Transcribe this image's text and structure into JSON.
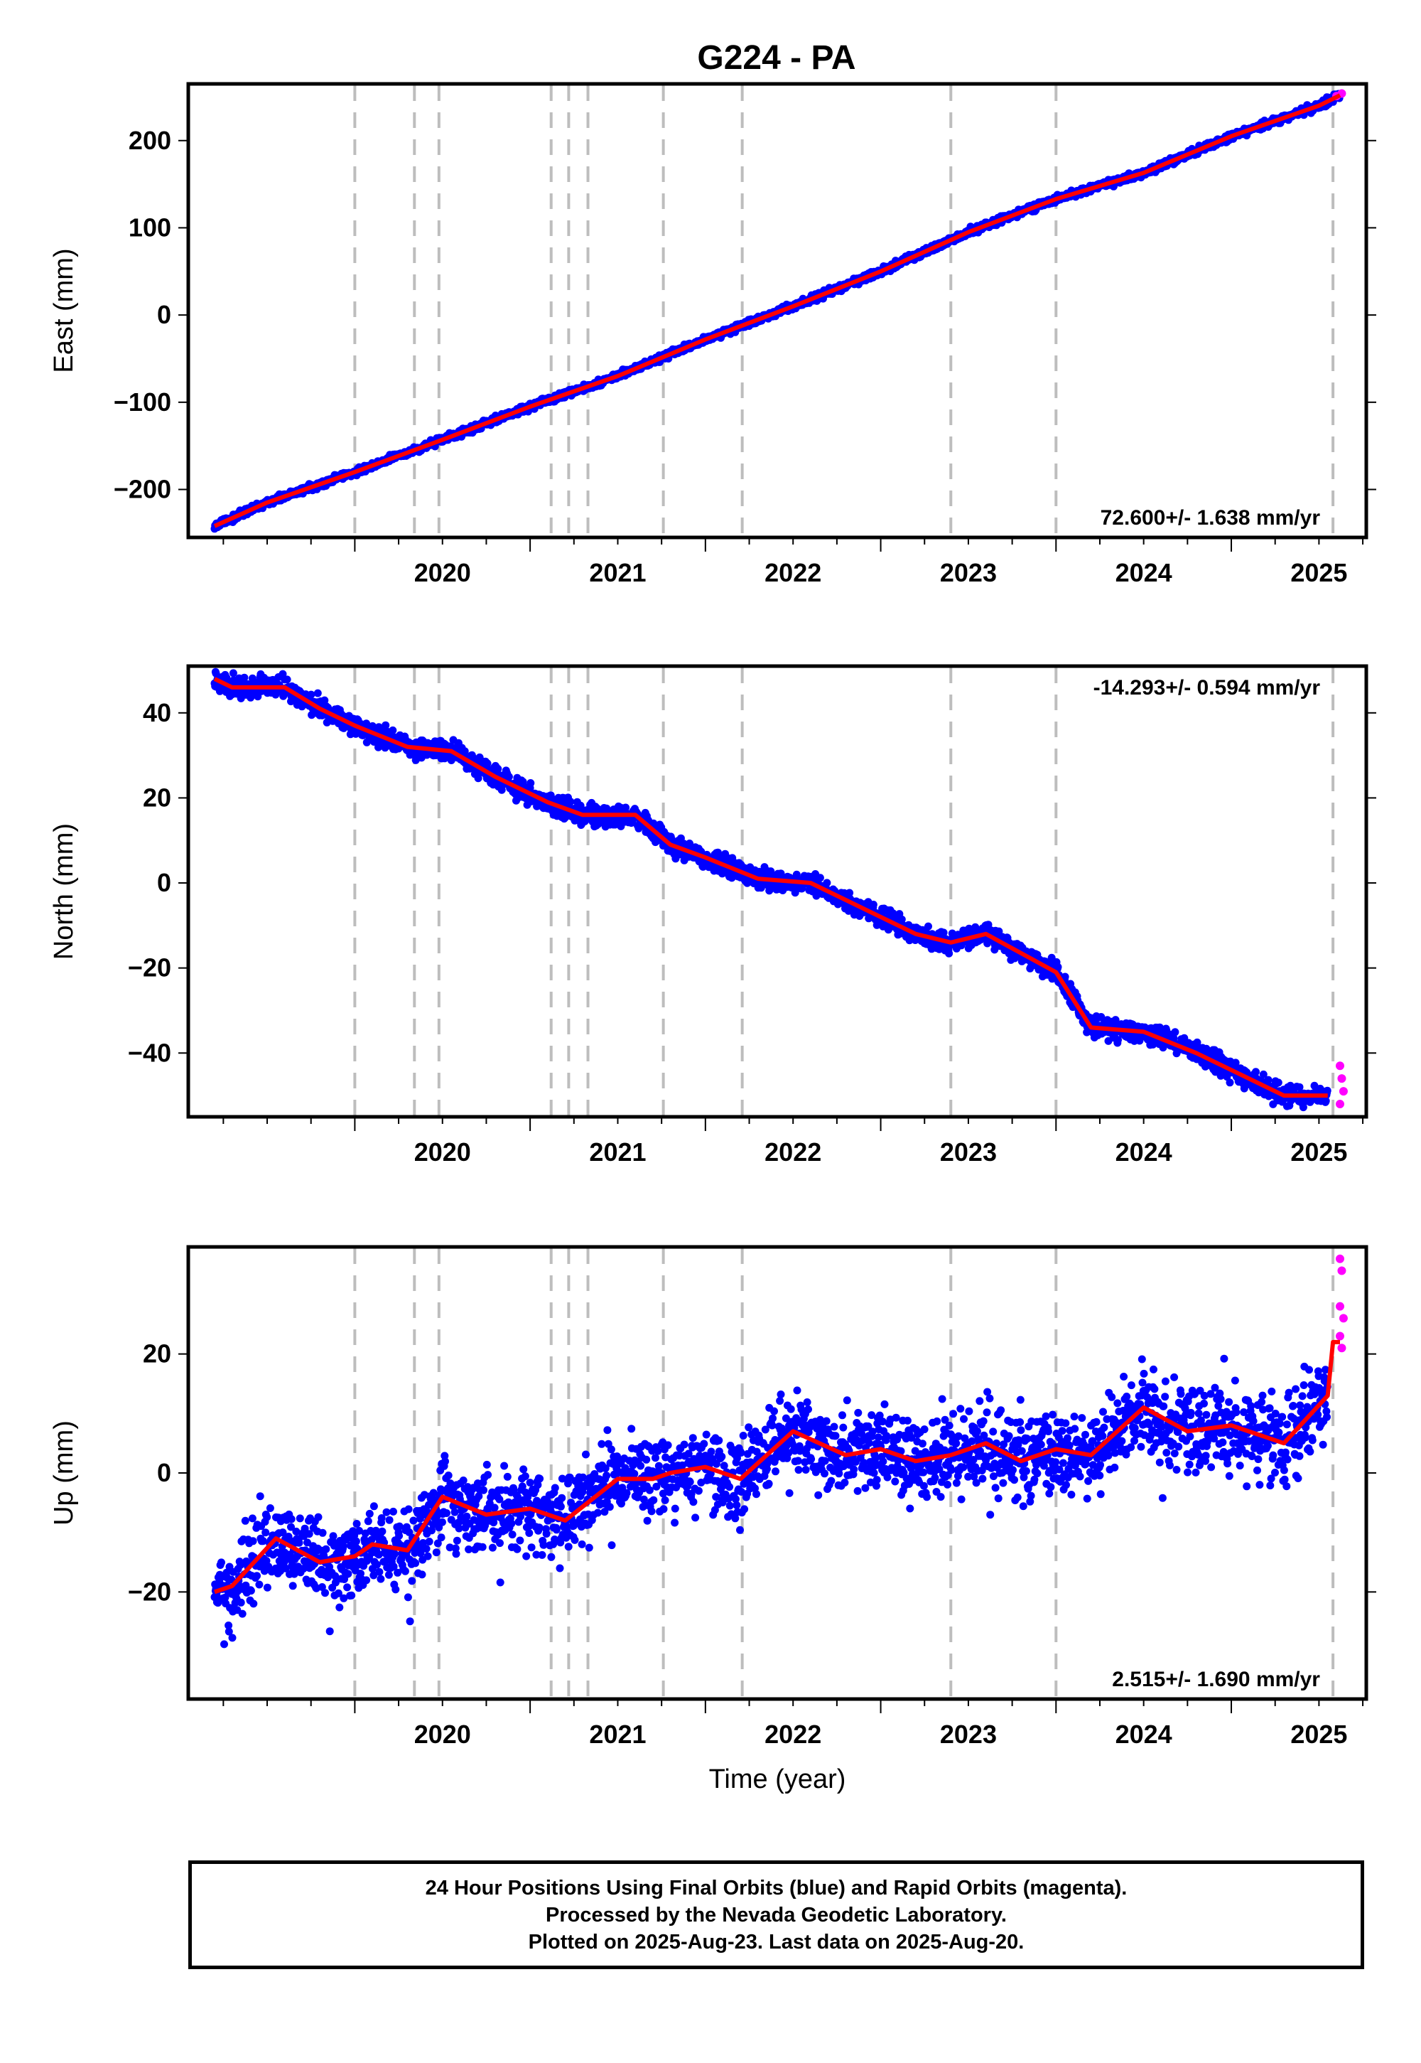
{
  "title": "G224 - PA",
  "chart_data": [
    {
      "type": "scatter",
      "panel": "east",
      "ylabel": "East (mm)",
      "xlabel": "",
      "xlim": [
        2019.05,
        2025.77
      ],
      "ylim": [
        -255,
        265
      ],
      "yticks": [
        -200,
        -100,
        0,
        100,
        200
      ],
      "xticks": [
        2020,
        2021,
        2022,
        2023,
        2024,
        2025
      ],
      "velocity_label": "72.600+/- 1.638 mm/yr",
      "velocity_label_position": "bottom-right",
      "series": [
        {
          "color": "#0000ff",
          "x": [
            2019.2,
            2019.5,
            2020.0,
            2020.5,
            2021.0,
            2021.5,
            2022.0,
            2022.5,
            2023.0,
            2023.5,
            2024.0,
            2024.5,
            2025.0,
            2025.5,
            2025.62
          ],
          "y": [
            -242,
            -215,
            -180,
            -143,
            -105,
            -70,
            -28,
            10,
            50,
            95,
            133,
            163,
            205,
            240,
            252
          ]
        },
        {
          "color": "#ff00ff",
          "x": [
            2025.6,
            2025.63
          ],
          "y": [
            251,
            254
          ]
        }
      ],
      "model_line": {
        "color": "#ff0000",
        "x": [
          2019.2,
          2019.5,
          2020.0,
          2020.5,
          2021.0,
          2021.5,
          2022.0,
          2022.5,
          2023.0,
          2023.5,
          2024.0,
          2024.5,
          2025.0,
          2025.5,
          2025.62
        ],
        "y": [
          -242,
          -215,
          -180,
          -143,
          -105,
          -70,
          -28,
          10,
          50,
          95,
          133,
          163,
          205,
          240,
          252
        ]
      },
      "breaks": [
        2020.0,
        2020.34,
        2020.48,
        2021.12,
        2021.22,
        2021.33,
        2021.76,
        2022.21,
        2023.4,
        2024.0,
        2025.58
      ]
    },
    {
      "type": "scatter",
      "panel": "north",
      "ylabel": "North (mm)",
      "xlabel": "",
      "xlim": [
        2019.05,
        2025.77
      ],
      "ylim": [
        -55,
        51
      ],
      "yticks": [
        -40,
        -20,
        0,
        20,
        40
      ],
      "xticks": [
        2020,
        2021,
        2022,
        2023,
        2024,
        2025
      ],
      "velocity_label": "-14.293+/- 0.594 mm/yr",
      "velocity_label_position": "top-right",
      "series": [
        {
          "color": "#0000ff",
          "x": [
            2019.2,
            2019.3,
            2019.6,
            2019.8,
            2020.0,
            2020.3,
            2020.55,
            2020.8,
            2021.1,
            2021.3,
            2021.6,
            2021.8,
            2022.0,
            2022.3,
            2022.6,
            2022.9,
            2023.2,
            2023.4,
            2023.6,
            2024.0,
            2024.2,
            2024.5,
            2024.8,
            2025.0,
            2025.3,
            2025.55
          ],
          "y": [
            48,
            46,
            46,
            41,
            37,
            32,
            31,
            25,
            19,
            16,
            16,
            9,
            6,
            1,
            0,
            -6,
            -12,
            -14,
            -12,
            -21,
            -34,
            -35,
            -40,
            -44,
            -50,
            -50
          ]
        },
        {
          "color": "#ff00ff",
          "x": [
            2025.62,
            2025.63,
            2025.64,
            2025.62
          ],
          "y": [
            -43,
            -46,
            -49,
            -52
          ]
        }
      ],
      "model_line": {
        "color": "#ff0000",
        "x": [
          2019.2,
          2019.3,
          2019.6,
          2019.8,
          2020.0,
          2020.3,
          2020.55,
          2020.8,
          2021.1,
          2021.3,
          2021.6,
          2021.8,
          2022.0,
          2022.3,
          2022.6,
          2022.9,
          2023.2,
          2023.4,
          2023.6,
          2024.0,
          2024.2,
          2024.5,
          2024.8,
          2025.0,
          2025.3,
          2025.55
        ],
        "y": [
          48,
          46,
          46,
          41,
          37,
          32,
          31,
          25,
          19,
          16,
          16,
          9,
          6,
          1,
          0,
          -6,
          -12,
          -14,
          -12,
          -21,
          -34,
          -35,
          -40,
          -44,
          -50,
          -50
        ]
      },
      "breaks": [
        2020.0,
        2020.34,
        2020.48,
        2021.12,
        2021.22,
        2021.33,
        2021.76,
        2022.21,
        2023.4,
        2024.0,
        2025.58
      ]
    },
    {
      "type": "scatter",
      "panel": "up",
      "ylabel": "Up (mm)",
      "xlabel": "Time (year)",
      "xlim": [
        2019.05,
        2025.77
      ],
      "ylim": [
        -38,
        38
      ],
      "yticks": [
        -20,
        0,
        20
      ],
      "xticks": [
        2020,
        2021,
        2022,
        2023,
        2024,
        2025
      ],
      "velocity_label": "2.515+/- 1.690 mm/yr",
      "velocity_label_position": "bottom-right",
      "series": [
        {
          "color": "#0000ff",
          "x": [
            2019.2,
            2019.3,
            2019.55,
            2019.8,
            2020.0,
            2020.1,
            2020.3,
            2020.5,
            2020.75,
            2021.0,
            2021.2,
            2021.5,
            2021.7,
            2021.8,
            2022.0,
            2022.2,
            2022.5,
            2022.8,
            2023.0,
            2023.2,
            2023.4,
            2023.6,
            2023.8,
            2024.0,
            2024.2,
            2024.5,
            2024.75,
            2025.0,
            2025.3,
            2025.55
          ],
          "y": [
            -20,
            -19,
            -11,
            -15,
            -14,
            -12,
            -13,
            -4,
            -7,
            -6,
            -8,
            -1,
            -1,
            0,
            1,
            -1,
            7,
            3,
            4,
            2,
            3,
            5,
            2,
            4,
            3,
            11,
            7,
            8,
            5,
            13
          ]
        },
        {
          "color": "#ff00ff",
          "x": [
            2025.62,
            2025.63,
            2025.62,
            2025.64,
            2025.62,
            2025.63
          ],
          "y": [
            36,
            34,
            28,
            26,
            23,
            21
          ]
        }
      ],
      "model_line": {
        "color": "#ff0000",
        "x": [
          2019.2,
          2019.3,
          2019.55,
          2019.8,
          2020.0,
          2020.1,
          2020.3,
          2020.5,
          2020.75,
          2021.0,
          2021.2,
          2021.5,
          2021.7,
          2021.8,
          2022.0,
          2022.2,
          2022.5,
          2022.8,
          2023.0,
          2023.2,
          2023.4,
          2023.6,
          2023.8,
          2024.0,
          2024.2,
          2024.5,
          2024.75,
          2025.0,
          2025.3,
          2025.55,
          2025.58,
          2025.62
        ],
        "y": [
          -20,
          -19,
          -11,
          -15,
          -14,
          -12,
          -13,
          -4,
          -7,
          -6,
          -8,
          -1,
          -1,
          0,
          1,
          -1,
          7,
          3,
          4,
          2,
          3,
          5,
          2,
          4,
          3,
          11,
          7,
          8,
          5,
          13,
          22,
          22
        ]
      },
      "breaks": [
        2020.0,
        2020.34,
        2020.48,
        2021.12,
        2021.22,
        2021.33,
        2021.76,
        2022.21,
        2023.4,
        2024.0,
        2025.58
      ]
    }
  ],
  "caption": {
    "line1": "24 Hour Positions Using Final Orbits (blue) and Rapid Orbits (magenta).",
    "line2": "Processed by the Nevada Geodetic Laboratory.",
    "line3": "Plotted on 2025-Aug-23. Last data on 2025-Aug-20."
  }
}
